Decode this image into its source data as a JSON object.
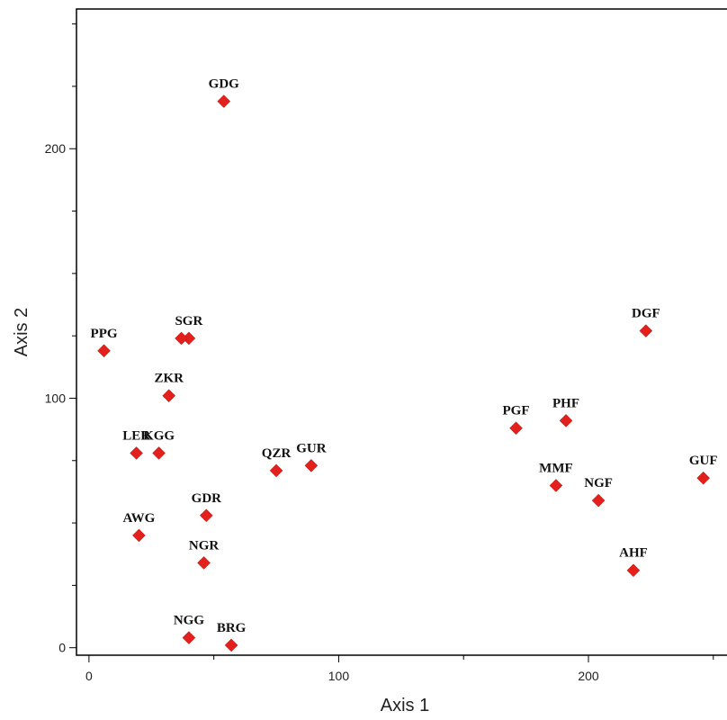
{
  "chart_data": {
    "type": "scatter",
    "xlabel": "Axis 1",
    "ylabel": "Axis 2",
    "xlim": [
      -5,
      258
    ],
    "ylim": [
      -3,
      256
    ],
    "xticks": [
      0,
      100,
      200
    ],
    "yticks": [
      0,
      100,
      200
    ],
    "tick_labels": {
      "x": [
        "0",
        "100",
        "200"
      ],
      "y": [
        "0",
        "100",
        "200"
      ]
    },
    "grid": false,
    "marker": "diamond",
    "marker_color": "#e3201b",
    "points": [
      {
        "label": "GDG",
        "x": 54,
        "y": 219
      },
      {
        "label": "PPG",
        "x": 6,
        "y": 119
      },
      {
        "label": "SGR",
        "x": 40,
        "y": 124
      },
      {
        "label": "ZKR",
        "x": 32,
        "y": 101
      },
      {
        "label": "LER",
        "x": 19,
        "y": 78
      },
      {
        "label": "KGG",
        "x": 28,
        "y": 78
      },
      {
        "label": "QZR",
        "x": 75,
        "y": 71
      },
      {
        "label": "GUR",
        "x": 89,
        "y": 73
      },
      {
        "label": "GDR",
        "x": 47,
        "y": 53
      },
      {
        "label": "AWG",
        "x": 20,
        "y": 45
      },
      {
        "label": "NGR",
        "x": 46,
        "y": 34
      },
      {
        "label": "NGG",
        "x": 40,
        "y": 4
      },
      {
        "label": "BRG",
        "x": 57,
        "y": 1
      },
      {
        "label": "DGF",
        "x": 223,
        "y": 127
      },
      {
        "label": "PHF",
        "x": 191,
        "y": 91
      },
      {
        "label": "PGF",
        "x": 171,
        "y": 88
      },
      {
        "label": "MMF",
        "x": 187,
        "y": 65
      },
      {
        "label": "NGF",
        "x": 204,
        "y": 59
      },
      {
        "label": "GUF",
        "x": 246,
        "y": 68
      },
      {
        "label": "AHF",
        "x": 218,
        "y": 31
      }
    ],
    "extra_points": [
      {
        "x": 37,
        "y": 124
      }
    ]
  }
}
